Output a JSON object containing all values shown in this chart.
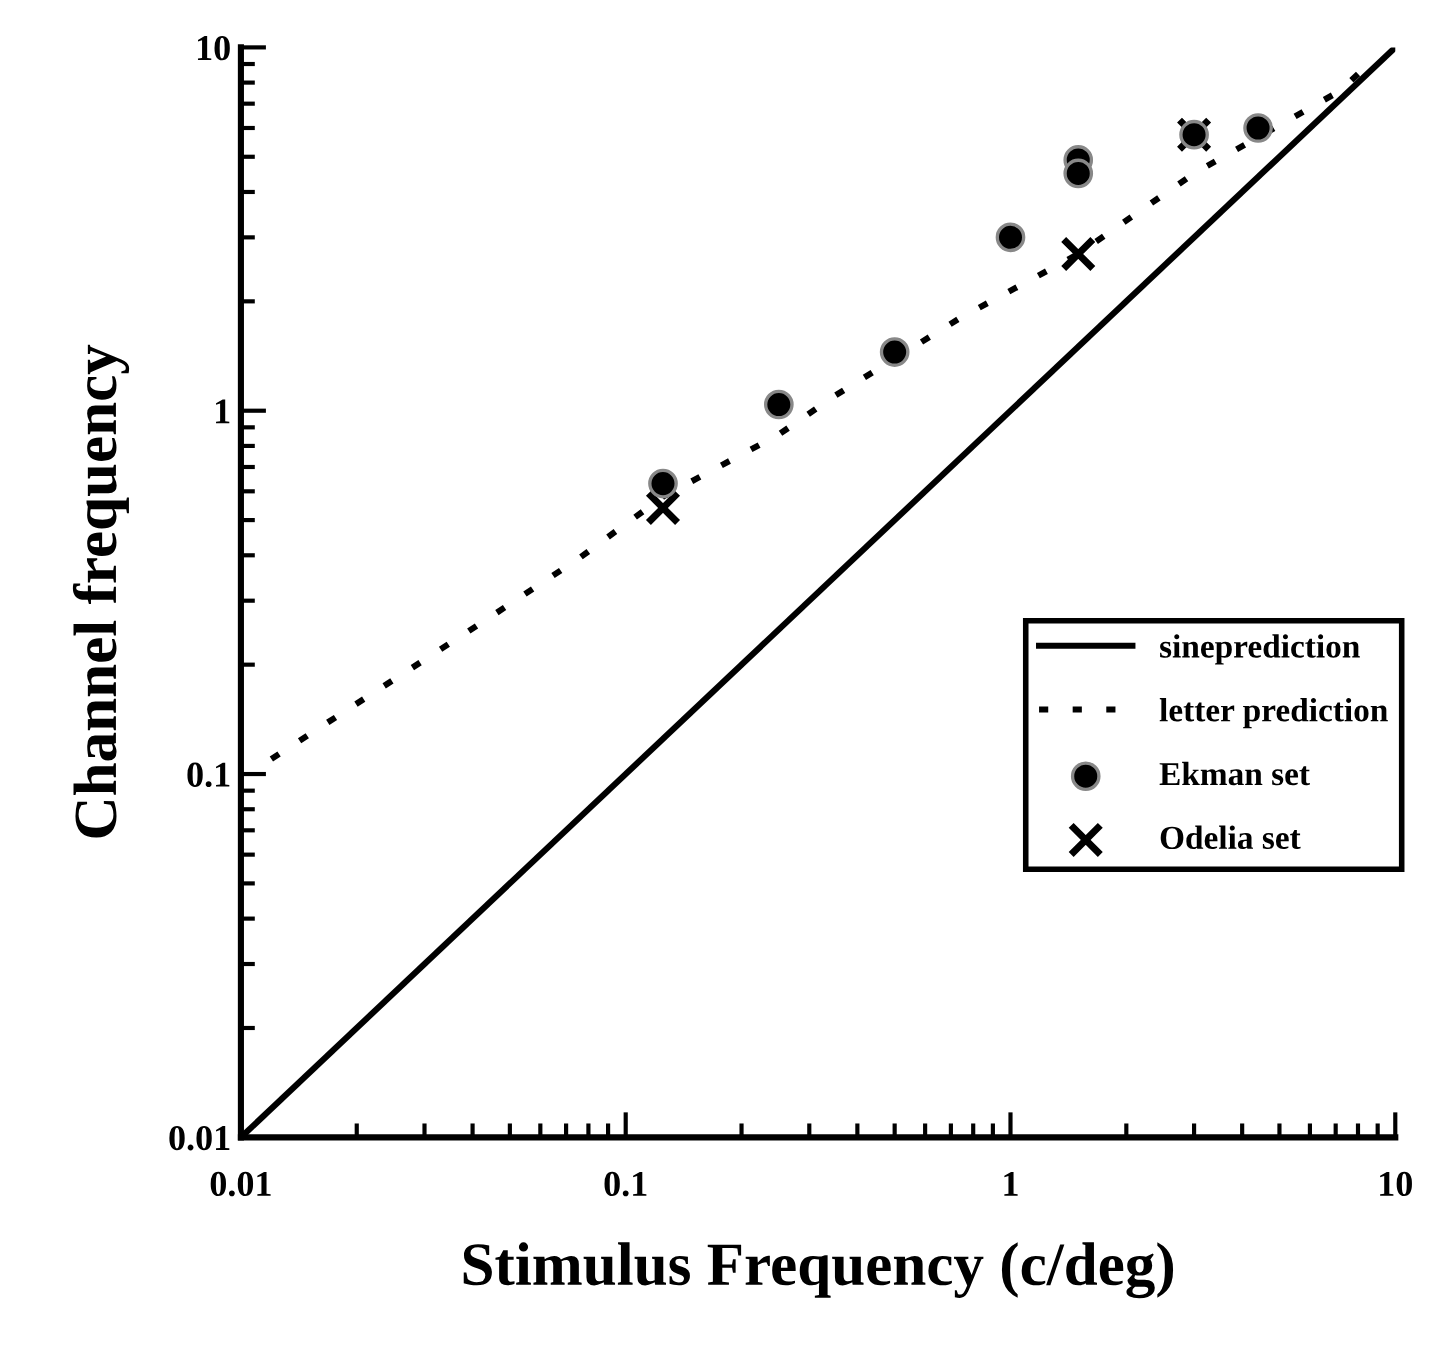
{
  "chart_data": {
    "type": "line",
    "xlabel": "Stimulus Frequency (c/deg)",
    "ylabel": "Channel frequency",
    "log": "xy",
    "xlim": [
      0.01,
      10
    ],
    "ylim": [
      0.01,
      10
    ],
    "xticks": [
      0.01,
      0.1,
      1,
      10
    ],
    "yticks": [
      0.01,
      0.1,
      1,
      10
    ],
    "grid": false,
    "legend": "right",
    "series": [
      {
        "name": "sineprediction",
        "line_style": "solid",
        "marker": "none",
        "color": "#000000",
        "x": [
          0.01,
          10
        ],
        "values": [
          0.01,
          10
        ]
      },
      {
        "name": "letter prediction",
        "line_style": "dotted",
        "marker": "none",
        "color": "#000000",
        "x": [
          0.012,
          0.042,
          0.075,
          0.125,
          0.25,
          0.35,
          0.74,
          1.5,
          3,
          7.2,
          8.9
        ],
        "values": [
          0.11,
          0.26,
          0.39,
          0.58,
          0.86,
          1.1,
          1.8,
          2.7,
          4.5,
          7.6,
          9.4
        ]
      },
      {
        "name": "Ekman set",
        "type": "scatter",
        "marker": "circle",
        "color": "#000000",
        "x": [
          0.125,
          0.25,
          0.5,
          1,
          1.5,
          1.5,
          3,
          4.4
        ],
        "values": [
          0.63,
          1.04,
          1.45,
          3.0,
          4.9,
          4.5,
          5.75,
          6.0
        ]
      },
      {
        "name": "Odelia set",
        "type": "scatter",
        "marker": "cross",
        "color": "#000000",
        "x": [
          0.125,
          1.5,
          3
        ],
        "values": [
          0.54,
          2.7,
          5.75
        ]
      }
    ]
  }
}
